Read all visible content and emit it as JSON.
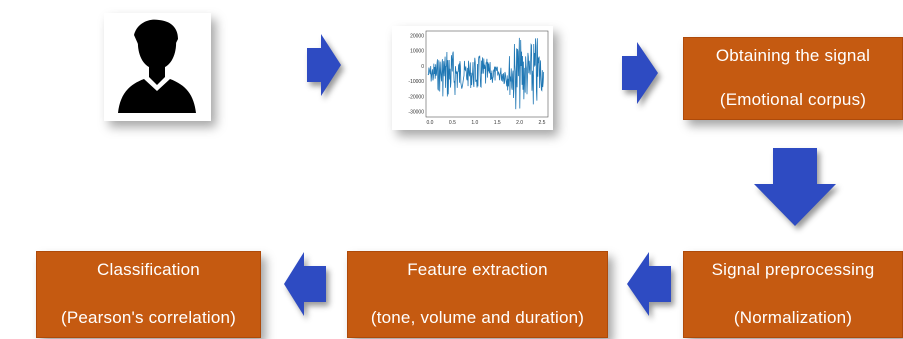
{
  "steps": {
    "obtaining": {
      "title": "Obtaining the signal",
      "subtitle": "(Emotional corpus)"
    },
    "preprocessing": {
      "title": "Signal preprocessing",
      "subtitle": "(Normalization)"
    },
    "feature": {
      "title": "Feature extraction",
      "subtitle": "(tone, volume and duration)"
    },
    "classification": {
      "title": "Classification",
      "subtitle": "(Pearson's correlation)"
    }
  },
  "waveform": {
    "y_ticks": [
      "20000",
      "10000",
      "0",
      "-10000",
      "-20000",
      "-30000"
    ],
    "x_ticks": [
      "0.0",
      "0.5",
      "1.0",
      "1.5",
      "2.0",
      "2.5"
    ]
  },
  "icons": {
    "person": "user-silhouette-icon",
    "arrow": "blue-arrow-icon",
    "arrow_color": "#2e4bc2"
  },
  "colors": {
    "box_fill": "#c55a11",
    "box_text": "#ffffff",
    "waveform": "#1f77b4"
  }
}
